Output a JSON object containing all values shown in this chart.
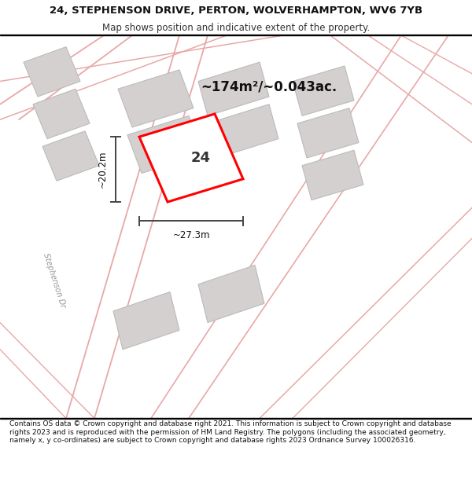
{
  "title_line1": "24, STEPHENSON DRIVE, PERTON, WOLVERHAMPTON, WV6 7YB",
  "title_line2": "Map shows position and indicative extent of the property.",
  "footer_text": "Contains OS data © Crown copyright and database right 2021. This information is subject to Crown copyright and database rights 2023 and is reproduced with the permission of HM Land Registry. The polygons (including the associated geometry, namely x, y co-ordinates) are subject to Crown copyright and database rights 2023 Ordnance Survey 100026316.",
  "map_bg": "#f0eeee",
  "title_bg": "#ffffff",
  "footer_bg": "#ffffff",
  "road_color": "#e8a8a8",
  "building_fill": "#d4d0d0",
  "building_outline": "#bbbbbb",
  "plot_color": "#ff0000",
  "dimension_color": "#444444",
  "area_text": "~174m²/~0.043ac.",
  "label_24": "24",
  "dim_width": "~27.3m",
  "dim_height": "~20.2m",
  "road_label": "Stephenson Dr",
  "title_fontsize": 9.5,
  "subtitle_fontsize": 8.5,
  "footer_fontsize": 6.5
}
